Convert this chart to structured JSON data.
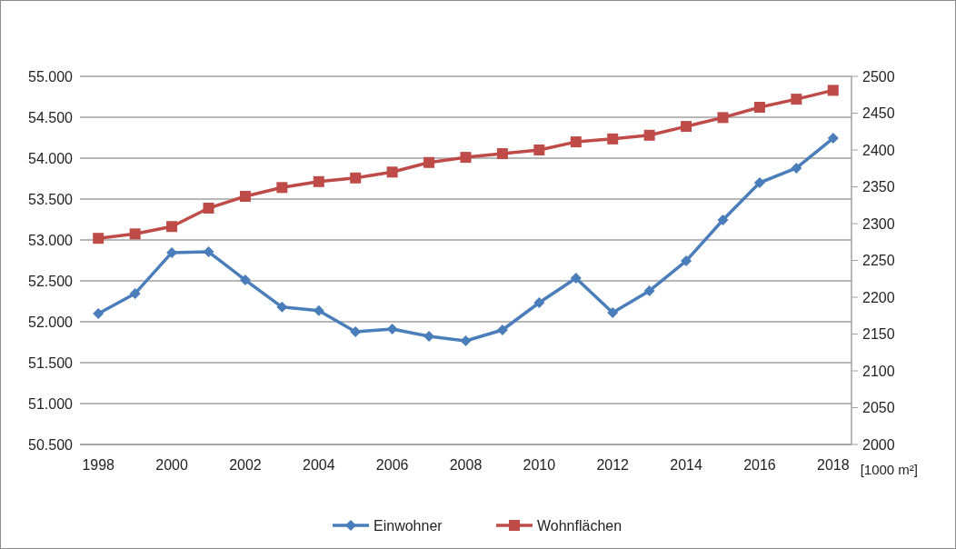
{
  "chart_data": {
    "type": "line",
    "x": [
      1998,
      1999,
      2000,
      2001,
      2002,
      2003,
      2004,
      2005,
      2006,
      2007,
      2008,
      2009,
      2010,
      2011,
      2012,
      2013,
      2014,
      2015,
      2016,
      2017,
      2018
    ],
    "series": [
      {
        "name": "Einwohner",
        "color": "#4a7ebb",
        "marker": "diamond",
        "values": [
          52100,
          52345,
          52845,
          52855,
          52510,
          52180,
          52135,
          51878,
          51911,
          51822,
          51767,
          51900,
          52233,
          52533,
          52111,
          52378,
          52744,
          53244,
          53700,
          53878,
          54244
        ]
      },
      {
        "name": "Wohnflächen",
        "color": "#be4b48",
        "marker": "square",
        "axis": "y2",
        "values": [
          2280,
          2286,
          2296,
          2321,
          2337,
          2349,
          2357,
          2362,
          2370,
          2383,
          2390,
          2395,
          2400,
          2411,
          2415,
          2420,
          2432,
          2444,
          2458,
          2469,
          2481
        ]
      }
    ],
    "xlim": [
      1997.5,
      2018.5
    ],
    "xticks": [
      1998,
      2000,
      2002,
      2004,
      2006,
      2008,
      2010,
      2012,
      2014,
      2016,
      2018
    ],
    "ylim": [
      50500,
      55000
    ],
    "yticks": [
      {
        "value": 50500,
        "label": "50.500"
      },
      {
        "value": 51000,
        "label": "51.000"
      },
      {
        "value": 51500,
        "label": "51.500"
      },
      {
        "value": 52000,
        "label": "52.000"
      },
      {
        "value": 52500,
        "label": "52.500"
      },
      {
        "value": 53000,
        "label": "53.000"
      },
      {
        "value": 53500,
        "label": "53.500"
      },
      {
        "value": 54000,
        "label": "54.000"
      },
      {
        "value": 54500,
        "label": "54.500"
      },
      {
        "value": 55000,
        "label": "55.000"
      }
    ],
    "y2lim": [
      2000,
      2500
    ],
    "y2ticks": [
      2000,
      2050,
      2100,
      2150,
      2200,
      2250,
      2300,
      2350,
      2400,
      2450,
      2500
    ],
    "y2label": "[1000 m²]",
    "grid": "y",
    "legend": "bottom",
    "line_style": "solid"
  }
}
